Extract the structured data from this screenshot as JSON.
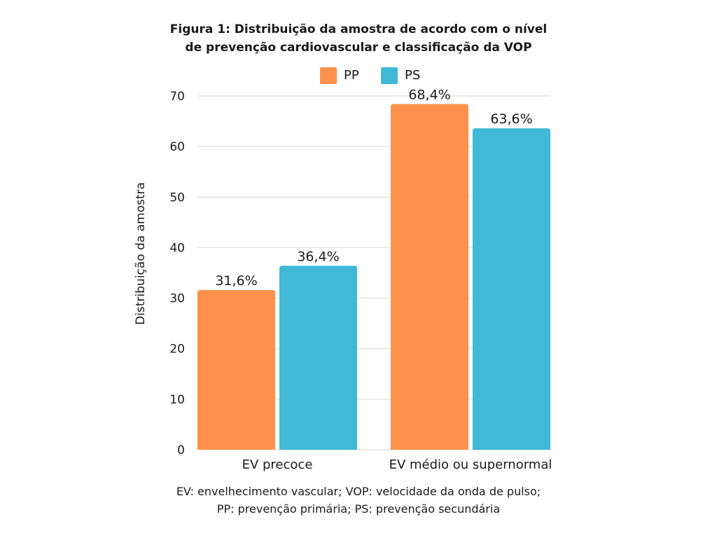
{
  "title_line1": "Figura 1: Distribuição da amostra de acordo com o nível",
  "title_line2": "de prevenção cardiovascular e classificação da VOP",
  "footnote_line1": "EV: envelhecimento vascular; VOP: velocidade da onda de pulso;",
  "footnote_line2": "PP: prevenção primária; PS: prevenção secundária",
  "colors": {
    "PP": "#FF914D",
    "PS": "#40B8D6",
    "grid": "#d9d9d9"
  },
  "chart_data": {
    "type": "bar",
    "categories": [
      "EV precoce",
      "EV médio ou supernormal"
    ],
    "series": [
      {
        "name": "PP",
        "values": [
          31.6,
          68.4
        ],
        "labels": [
          "31,6%",
          "68,4%"
        ]
      },
      {
        "name": "PS",
        "values": [
          36.4,
          63.6
        ],
        "labels": [
          "36,4%",
          "63,6%"
        ]
      }
    ],
    "xlabel": "",
    "ylabel": "Distribuição da amostra",
    "ylim": [
      0,
      70
    ],
    "yticks": [
      "0",
      "10",
      "20",
      "30",
      "40",
      "50",
      "60",
      "70"
    ],
    "grid": true,
    "legend": "top-center"
  }
}
